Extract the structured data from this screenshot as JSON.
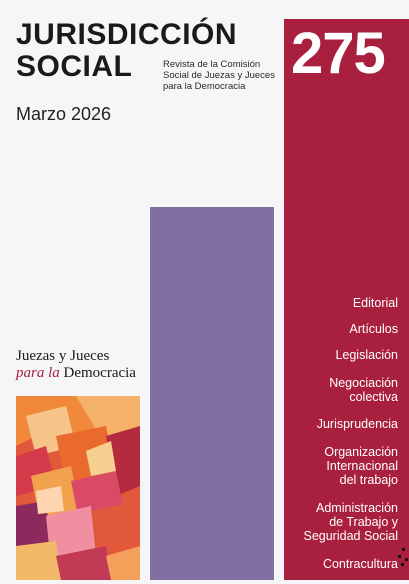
{
  "magazine": {
    "title_line1": "JURISDICCIÓN",
    "title_line2": "SOCIAL",
    "subtitle": "Revista de la Comisión Social de Juezas y Jueces para la Democracia",
    "date": "Marzo 2026",
    "issue_number": "275"
  },
  "toc": [
    "Editorial",
    "Artículos",
    "Legislación",
    "Negociación colectiva",
    "Jurisprudencia",
    "Organización Internacional del trabajo",
    "Administración de Trabajo y Seguridad Social",
    "Contracultura"
  ],
  "publisher": {
    "line1": "Juezas y Jueces",
    "line2_para": "para la",
    "line2_rest": "Democracia"
  },
  "colors": {
    "red": "#a9203e",
    "purple": "#826fa1",
    "background": "#f6f6f8"
  }
}
